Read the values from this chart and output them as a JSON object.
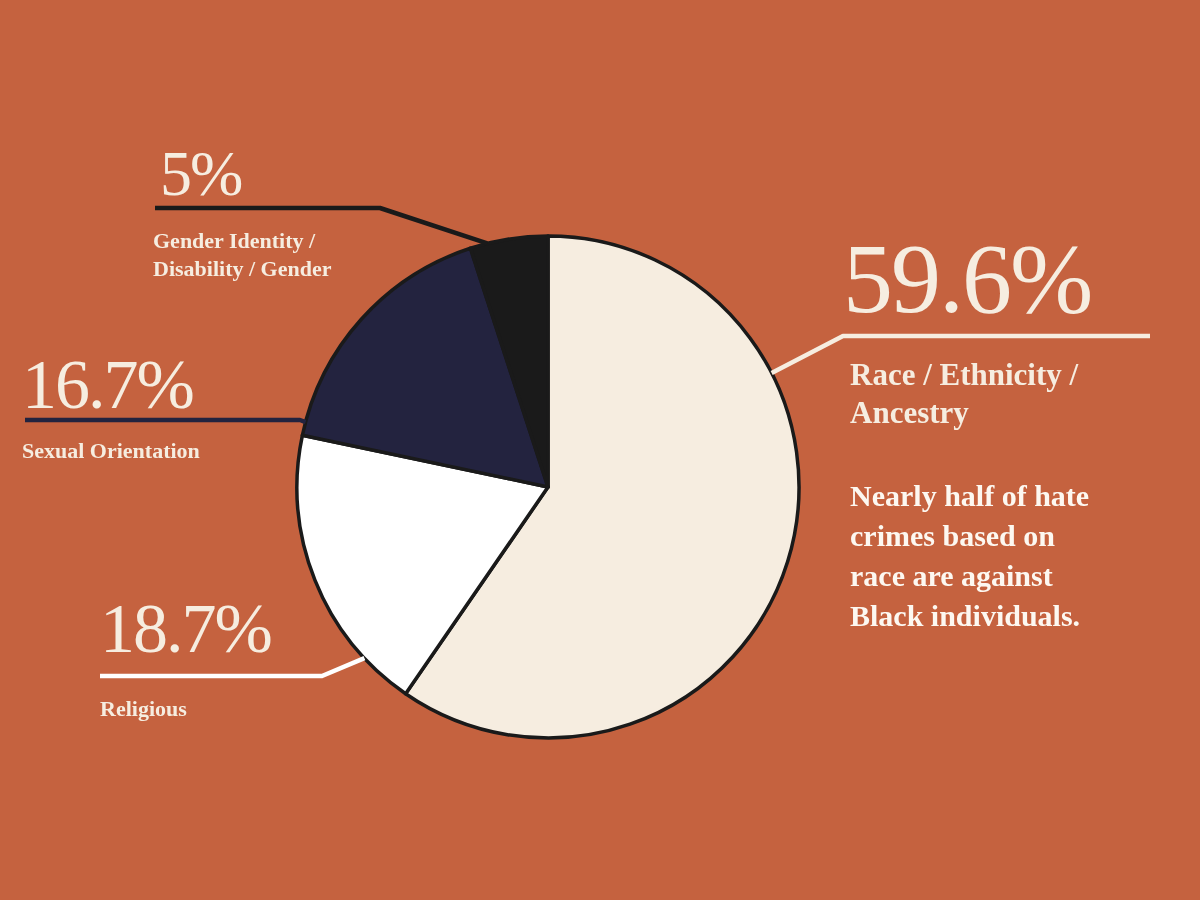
{
  "chart_data": {
    "type": "pie",
    "categories": [
      "Race / Ethnicity / Ancestry",
      "Religious",
      "Sexual Orientation",
      "Gender Identity / Disability / Gender"
    ],
    "values": [
      59.6,
      18.7,
      16.7,
      5
    ],
    "colors": [
      "#f6ede0",
      "#ffffff",
      "#23233f",
      "#1a1a1a"
    ],
    "value_labels": [
      "59.6%",
      "18.7%",
      "16.7%",
      "5%"
    ],
    "annotations": [
      "Nearly half of hate crimes based on race are against Black individuals."
    ]
  }
}
